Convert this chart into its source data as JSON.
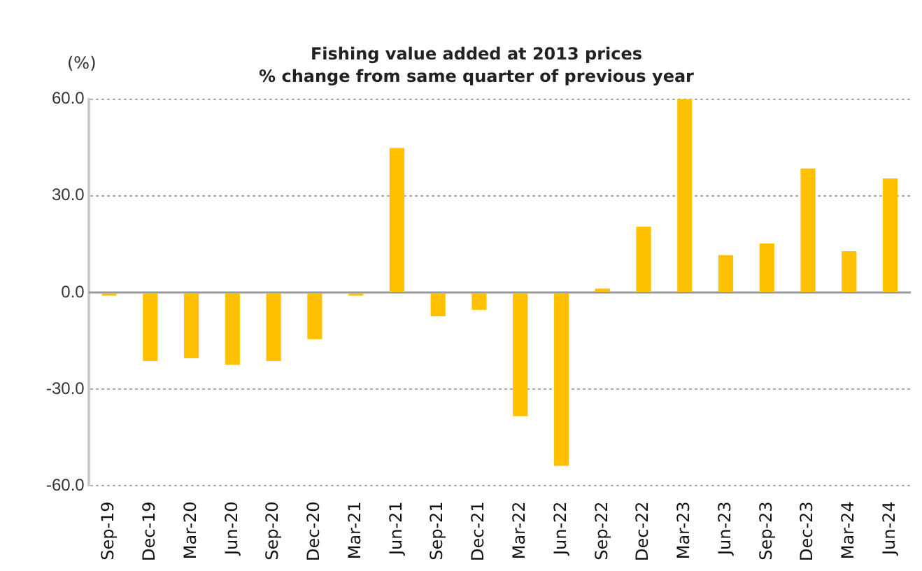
{
  "chart_data": {
    "type": "bar",
    "title": "Fishing value added at 2013 prices",
    "subtitle": "% change from same quarter of previous year",
    "ylabel": "(%)",
    "categories": [
      "Sep-19",
      "Dec-19",
      "Mar-20",
      "Jun-20",
      "Sep-20",
      "Dec-20",
      "Mar-21",
      "Jun-21",
      "Sep-21",
      "Dec-21",
      "Mar-22",
      "Jun-22",
      "Sep-22",
      "Dec-22",
      "Mar-23",
      "Jun-23",
      "Sep-23",
      "Dec-23",
      "Mar-24",
      "Jun-24"
    ],
    "values": [
      -1,
      -21.3,
      -20.4,
      -22.4,
      -21.3,
      -14.5,
      -1,
      44.8,
      -7.4,
      -5.4,
      -38.4,
      -53.8,
      1.2,
      20.4,
      60,
      11.6,
      15.2,
      38.5,
      12.8,
      35.4
    ],
    "color": "#ffc000",
    "ylim": [
      -60,
      60
    ],
    "yticks": [
      {
        "value": -60,
        "label": "-60.0"
      },
      {
        "value": -30,
        "label": "-30.0"
      },
      {
        "value": 0,
        "label": "0.0"
      },
      {
        "value": 30,
        "label": "30.0"
      },
      {
        "value": 60,
        "label": "60.0"
      }
    ],
    "grid": "y",
    "legend": false
  }
}
